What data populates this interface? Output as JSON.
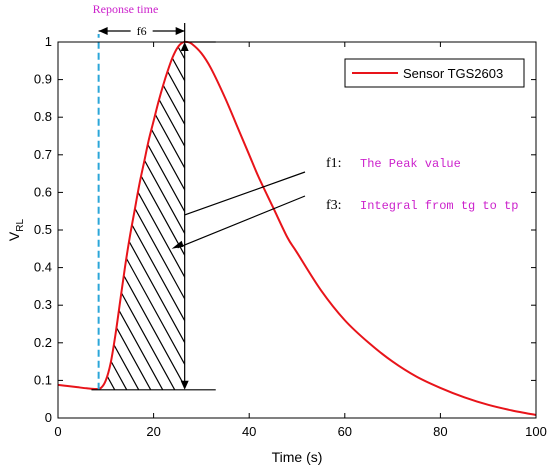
{
  "chart_data": {
    "type": "line",
    "xlabel": "Time (s)",
    "ylabel_main": "V",
    "ylabel_sub": "RL",
    "xlim": [
      0,
      100
    ],
    "ylim": [
      0,
      1
    ],
    "xticks": [
      0,
      20,
      40,
      60,
      80,
      100
    ],
    "yticks": [
      0,
      0.1,
      0.2,
      0.3,
      0.4,
      0.5,
      0.6,
      0.7,
      0.8,
      0.9,
      1
    ],
    "grid": false,
    "legend": {
      "position": "top-right",
      "entries": [
        "Sensor TGS2603"
      ]
    },
    "series": [
      {
        "name": "Sensor TGS2603",
        "color": "#e8141a",
        "x": [
          0,
          2,
          4,
          6,
          8,
          9,
          10,
          11,
          12,
          13,
          14,
          15,
          16,
          17,
          18,
          19,
          20,
          21,
          22,
          23,
          24,
          25,
          26,
          27,
          28,
          30,
          32,
          35,
          38,
          40,
          42,
          45,
          48,
          50,
          55,
          60,
          65,
          70,
          75,
          80,
          85,
          90,
          95,
          100
        ],
        "y": [
          0.088,
          0.085,
          0.082,
          0.079,
          0.077,
          0.08,
          0.1,
          0.145,
          0.22,
          0.31,
          0.4,
          0.48,
          0.55,
          0.62,
          0.68,
          0.74,
          0.79,
          0.84,
          0.885,
          0.925,
          0.96,
          0.985,
          0.998,
          1.0,
          0.995,
          0.97,
          0.93,
          0.85,
          0.76,
          0.7,
          0.64,
          0.56,
          0.48,
          0.44,
          0.34,
          0.26,
          0.2,
          0.15,
          0.11,
          0.08,
          0.055,
          0.035,
          0.02,
          0.008
        ]
      }
    ],
    "annotations": {
      "response_time": {
        "label": "Reponse time",
        "x": 8.5,
        "color": "#2ba6d9"
      },
      "f6": {
        "label": "f6",
        "x_start": 8.5,
        "x_end": 26.5,
        "y": 1.0
      },
      "f1": {
        "label_key": "f1:",
        "label_text": "The Peak value",
        "target_x": 26.5,
        "target_y": 0.54
      },
      "f3": {
        "label_key": "f3:",
        "label_text": "Integral from tg to tp",
        "target_x": 26.5,
        "target_y": 0.45
      },
      "peak": {
        "x": 26.5,
        "y_base": 0.075,
        "y_top": 1.0
      },
      "hatch": {
        "x_start": 9.5,
        "x_end": 26.5,
        "y_base": 0.075
      },
      "text_color": "#cc22cc"
    }
  }
}
